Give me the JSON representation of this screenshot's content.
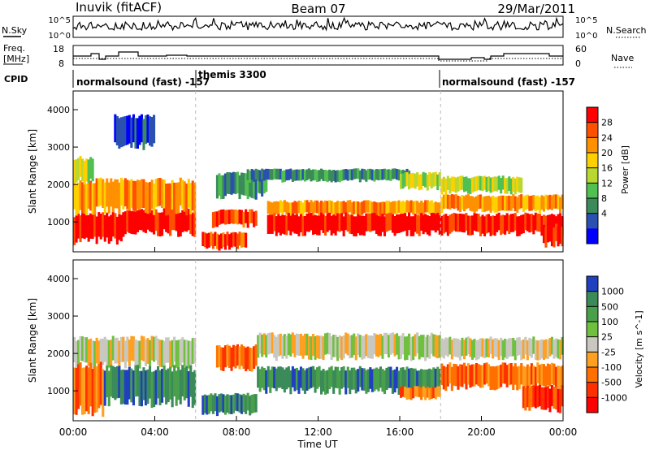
{
  "header": {
    "station": "Inuvik (fitACF)",
    "beam": "Beam 07",
    "date": "29/Mar/2011"
  },
  "top_panels": {
    "nsky": {
      "label": "N.Sky",
      "ticks_left": [
        "10^5",
        "10^0"
      ],
      "ticks_right": [
        "10^5",
        "10^0"
      ],
      "right_label": "N.Search"
    },
    "freq": {
      "label_line1": "Freq.",
      "label_line2": "[MHz]",
      "ticks_left": [
        "18",
        "8"
      ],
      "ticks_right": [
        "60",
        "0"
      ],
      "right_label": "Nave"
    },
    "cpid": {
      "label": "CPID",
      "segments": [
        {
          "text": "normalsound (fast) -157",
          "start_hour": 0
        },
        {
          "text": "themis 3300",
          "start_hour": 6
        },
        {
          "text": "normalsound (fast) -157",
          "start_hour": 18
        }
      ]
    }
  },
  "x_axis": {
    "tick_labels": [
      "00:00",
      "04:00",
      "08:00",
      "12:00",
      "16:00",
      "20:00",
      "00:00"
    ],
    "title": "Time UT"
  },
  "chart_data": [
    {
      "type": "heatmap",
      "title": "",
      "xlabel": "Time UT",
      "ylabel": "Slant Range [km]",
      "xlim": [
        0,
        24
      ],
      "ylim": [
        200,
        4500
      ],
      "yticks": [
        "1000",
        "2000",
        "3000",
        "4000"
      ],
      "colorbar": {
        "label": "Power [dB]",
        "ticks": [
          "28",
          "24",
          "20",
          "16",
          "12",
          "8",
          "4"
        ],
        "colors": [
          "#ff0000",
          "#ff5000",
          "#ff9000",
          "#ffd000",
          "#b8d830",
          "#50c050",
          "#3a8a5a",
          "#2a50b0",
          "#0000ff"
        ]
      },
      "bands": [
        {
          "t0": 0.0,
          "t1": 2.5,
          "r0": 500,
          "r1": 1200,
          "level": 0
        },
        {
          "t0": 2.5,
          "t1": 6.0,
          "r0": 700,
          "r1": 1300,
          "level": 0
        },
        {
          "t0": 0.0,
          "t1": 6.0,
          "r0": 1300,
          "r1": 2100,
          "level": 2
        },
        {
          "t0": 0.0,
          "t1": 1.0,
          "r0": 2100,
          "r1": 2700,
          "level": 4
        },
        {
          "t0": 2.0,
          "t1": 4.0,
          "r0": 3000,
          "r1": 3800,
          "level": 7
        },
        {
          "t0": 6.3,
          "t1": 8.5,
          "r0": 300,
          "r1": 700,
          "level": 1
        },
        {
          "t0": 6.8,
          "t1": 9.0,
          "r0": 900,
          "r1": 1300,
          "level": 1
        },
        {
          "t0": 7.0,
          "t1": 9.5,
          "r0": 1700,
          "r1": 2300,
          "level": 6
        },
        {
          "t0": 8.5,
          "t1": 16.5,
          "r0": 2100,
          "r1": 2400,
          "level": 6
        },
        {
          "t0": 9.5,
          "t1": 18.0,
          "r0": 1200,
          "r1": 1550,
          "level": 2
        },
        {
          "t0": 9.5,
          "t1": 18.0,
          "r0": 700,
          "r1": 1200,
          "level": 0
        },
        {
          "t0": 16.0,
          "t1": 18.0,
          "r0": 1900,
          "r1": 2300,
          "level": 4
        },
        {
          "t0": 18.0,
          "t1": 24.0,
          "r0": 700,
          "r1": 1200,
          "level": 0
        },
        {
          "t0": 18.0,
          "t1": 24.0,
          "r0": 1300,
          "r1": 1700,
          "level": 2
        },
        {
          "t0": 18.0,
          "t1": 22.0,
          "r0": 1800,
          "r1": 2200,
          "level": 4
        },
        {
          "t0": 23.0,
          "t1": 24.0,
          "r0": 400,
          "r1": 900,
          "level": 0
        }
      ]
    },
    {
      "type": "heatmap",
      "title": "",
      "xlabel": "Time UT",
      "ylabel": "Slant Range [km]",
      "xlim": [
        0,
        24
      ],
      "ylim": [
        200,
        4500
      ],
      "yticks": [
        "1000",
        "2000",
        "3000",
        "4000"
      ],
      "colorbar": {
        "label": "Velocity [m s^-1]",
        "ticks": [
          "1000",
          "500",
          "100",
          "25",
          "-25",
          "-100",
          "-500",
          "-1000"
        ],
        "colors": [
          "#2040c0",
          "#3a8a5a",
          "#4aa04a",
          "#70c040",
          "#c8c8c0",
          "#ffa020",
          "#ff7000",
          "#ff3000",
          "#ff0000"
        ]
      },
      "bands": [
        {
          "t0": 0.0,
          "t1": 6.0,
          "r0": 1700,
          "r1": 2400,
          "level": 4
        },
        {
          "t0": 0.0,
          "t1": 1.5,
          "r0": 500,
          "r1": 1700,
          "level": 6
        },
        {
          "t0": 1.5,
          "t1": 6.0,
          "r0": 700,
          "r1": 1600,
          "level": 1
        },
        {
          "t0": 6.3,
          "t1": 9.0,
          "r0": 400,
          "r1": 900,
          "level": 1
        },
        {
          "t0": 7.0,
          "t1": 9.0,
          "r0": 1600,
          "r1": 2200,
          "level": 6
        },
        {
          "t0": 9.0,
          "t1": 18.0,
          "r0": 1000,
          "r1": 1600,
          "level": 1
        },
        {
          "t0": 9.0,
          "t1": 18.0,
          "r0": 1900,
          "r1": 2500,
          "level": 4
        },
        {
          "t0": 16.0,
          "t1": 18.0,
          "r0": 800,
          "r1": 1100,
          "level": 6
        },
        {
          "t0": 18.0,
          "t1": 24.0,
          "r0": 1100,
          "r1": 1700,
          "level": 6
        },
        {
          "t0": 18.0,
          "t1": 24.0,
          "r0": 1900,
          "r1": 2400,
          "level": 4
        },
        {
          "t0": 22.0,
          "t1": 24.0,
          "r0": 500,
          "r1": 1100,
          "level": 7
        }
      ]
    }
  ]
}
